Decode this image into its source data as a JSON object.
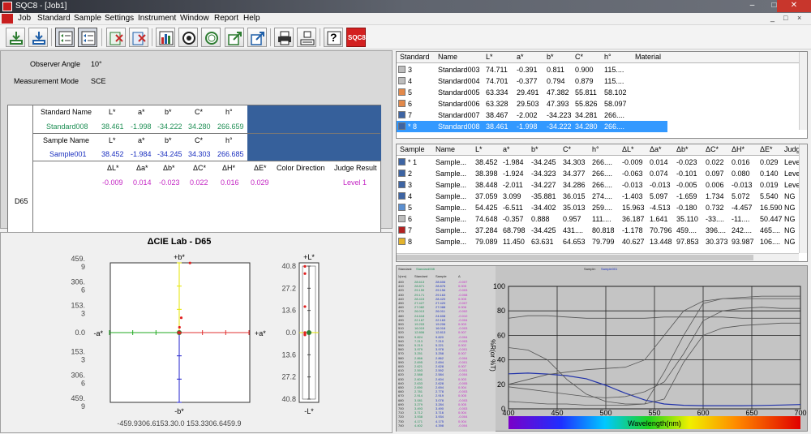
{
  "window": {
    "title": "SQC8 - [Job1]",
    "controls": {
      "min": "–",
      "max": "□",
      "close": "✕"
    }
  },
  "menu": {
    "items": [
      "Job",
      "Standard",
      "Sample",
      "Settings",
      "Instrument",
      "Window",
      "Report",
      "Help"
    ],
    "mdi": {
      "min": "_",
      "restore": "□",
      "close": "×"
    }
  },
  "toolbar": {
    "buttons": [
      "import-standard-icon",
      "import-sample-icon",
      "view-list-icon",
      "view-details-icon",
      "delete-standard-icon",
      "delete-sample-icon",
      "bar-chart-icon",
      "measure-target-icon",
      "measure-circle-icon",
      "export-green-icon",
      "export-blue-icon",
      "print-icon",
      "print-preview-icon",
      "help-icon",
      "sqc8-logo"
    ],
    "logo_text": "SQC8",
    "help_text": "?"
  },
  "info": {
    "observer_angle_label": "Observer Angle",
    "observer_angle_value": "10°",
    "measurement_mode_label": "Measurement Mode",
    "measurement_mode_value": "SCE",
    "illuminant": "D65",
    "standard_header": [
      "Standard Name",
      "L*",
      "a*",
      "b*",
      "C*",
      "h°"
    ],
    "standard_values": [
      "Standard008",
      "38.461",
      "-1.998",
      "-34.222",
      "34.280",
      "266.659"
    ],
    "sample_header": [
      "Sample Name",
      "L*",
      "a*",
      "b*",
      "C*",
      "h°"
    ],
    "sample_values": [
      "Sample001",
      "38.452",
      "-1.984",
      "-34.245",
      "34.303",
      "266.685"
    ],
    "delta_header": [
      "ΔL*",
      "Δa*",
      "Δb*",
      "ΔC*",
      "ΔH*",
      "ΔE*",
      "Color Direction",
      "Judge Result"
    ],
    "delta_values": [
      "-0.009",
      "0.014",
      "-0.023",
      "0.022",
      "0.016",
      "0.029",
      "",
      "Level 1"
    ]
  },
  "lab_chart": {
    "title": "ΔCIE Lab - D65",
    "ab_labels": {
      "top": "+b*",
      "bottom": "-b*",
      "left": "-a*",
      "right": "+a*"
    },
    "b_ticks": [
      "459.\n9",
      "306.\n6",
      "153.\n3",
      "0.0",
      "153.\n3",
      "306.\n6",
      "459.\n9"
    ],
    "a_ticks": "-459.9306.6153.30.0 153.3306.6459.9",
    "l_labels": {
      "top": "+L*",
      "bottom": "-L*"
    },
    "l_ticks": [
      "40.8",
      "27.2",
      "13.6",
      "0.0",
      "13.6",
      "27.2",
      "40.8"
    ]
  },
  "standard_list": {
    "columns": [
      "Standard",
      "Name",
      "L*",
      "a*",
      "b*",
      "C*",
      "h°",
      "Material"
    ],
    "rows": [
      {
        "num": "3",
        "name": "Standard003",
        "L": "74.711",
        "a": "-0.391",
        "b": "0.811",
        "C": "0.900",
        "h": "115....",
        "color": "#bdbdbd"
      },
      {
        "num": "4",
        "name": "Standard004",
        "L": "74.701",
        "a": "-0.377",
        "b": "0.794",
        "C": "0.879",
        "h": "115....",
        "color": "#bdbdbd"
      },
      {
        "num": "5",
        "name": "Standard005",
        "L": "63.334",
        "a": "29.491",
        "b": "47.382",
        "C": "55.811",
        "h": "58.102",
        "color": "#e3894a"
      },
      {
        "num": "6",
        "name": "Standard006",
        "L": "63.328",
        "a": "29.503",
        "b": "47.393",
        "C": "55.826",
        "h": "58.097",
        "color": "#e3894a"
      },
      {
        "num": "7",
        "name": "Standard007",
        "L": "38.467",
        "a": "-2.002",
        "b": "-34.223",
        "C": "34.281",
        "h": "266....",
        "color": "#3d64a3"
      },
      {
        "num": "* 8",
        "name": "Standard008",
        "L": "38.461",
        "a": "-1.998",
        "b": "-34.222",
        "C": "34.280",
        "h": "266....",
        "color": "#3d64a3",
        "selected": true
      }
    ]
  },
  "sample_list": {
    "columns": [
      "Sample",
      "Name",
      "L*",
      "a*",
      "b*",
      "C*",
      "h°",
      "ΔL*",
      "Δa*",
      "Δb*",
      "ΔC*",
      "ΔH*",
      "ΔE*",
      "Judg"
    ],
    "rows": [
      {
        "num": "* 1",
        "name": "Sample...",
        "L": "38.452",
        "a": "-1.984",
        "b": "-34.245",
        "C": "34.303",
        "h": "266....",
        "dL": "-0.009",
        "da": "0.014",
        "db": "-0.023",
        "dC": "0.022",
        "dH": "0.016",
        "dE": "0.029",
        "j": "Leve",
        "color": "#3d64a3"
      },
      {
        "num": "2",
        "name": "Sample...",
        "L": "38.398",
        "a": "-1.924",
        "b": "-34.323",
        "C": "34.377",
        "h": "266....",
        "dL": "-0.063",
        "da": "0.074",
        "db": "-0.101",
        "dC": "0.097",
        "dH": "0.080",
        "dE": "0.140",
        "j": "Leve",
        "color": "#3d64a3"
      },
      {
        "num": "3",
        "name": "Sample...",
        "L": "38.448",
        "a": "-2.011",
        "b": "-34.227",
        "C": "34.286",
        "h": "266....",
        "dL": "-0.013",
        "da": "-0.013",
        "db": "-0.005",
        "dC": "0.006",
        "dH": "-0.013",
        "dE": "0.019",
        "j": "Leve",
        "color": "#3d64a3"
      },
      {
        "num": "4",
        "name": "Sample...",
        "L": "37.059",
        "a": "3.099",
        "b": "-35.881",
        "C": "36.015",
        "h": "274....",
        "dL": "-1.403",
        "da": "5.097",
        "db": "-1.659",
        "dC": "1.734",
        "dH": "5.072",
        "dE": "5.540",
        "j": "NG",
        "color": "#3d64a3"
      },
      {
        "num": "5",
        "name": "Sample...",
        "L": "54.425",
        "a": "-6.511",
        "b": "-34.402",
        "C": "35.013",
        "h": "259....",
        "dL": "15.963",
        "da": "-4.513",
        "db": "-0.180",
        "dC": "0.732",
        "dH": "-4.457",
        "dE": "16.590",
        "j": "NG",
        "color": "#5b8fd0"
      },
      {
        "num": "6",
        "name": "Sample...",
        "L": "74.648",
        "a": "-0.357",
        "b": "0.888",
        "C": "0.957",
        "h": "111....",
        "dL": "36.187",
        "da": "1.641",
        "db": "35.110",
        "dC": "-33....",
        "dH": "-11....",
        "dE": "50.447",
        "j": "NG",
        "color": "#bdbdbd"
      },
      {
        "num": "7",
        "name": "Sample...",
        "L": "37.284",
        "a": "68.798",
        "b": "-34.425",
        "C": "431....",
        "h": "80.818",
        "dL": "-1.178",
        "da": "70.796",
        "db": "459....",
        "dC": "396....",
        "dH": "242....",
        "dE": "465....",
        "j": "NG",
        "color": "#b22222"
      },
      {
        "num": "8",
        "name": "Sample...",
        "L": "79.089",
        "a": "11.450",
        "b": "63.631",
        "C": "64.653",
        "h": "79.799",
        "dL": "40.627",
        "da": "13.448",
        "db": "97.853",
        "dC": "30.373",
        "dH": "93.987",
        "dE": "106....",
        "j": "NG",
        "color": "#e3b32c"
      }
    ]
  },
  "spectrum": {
    "standard_label": "Standard:",
    "standard_name": "Standard008",
    "sample_label": "Sample:",
    "sample_name": "Sample001",
    "y_axis_label": "%R(or %T)",
    "x_axis_label": "Wavelength(nm)",
    "y_ticks": [
      "100",
      "80",
      "60",
      "40",
      "20",
      "0"
    ],
    "x_ticks": [
      "400",
      "450",
      "500",
      "550",
      "600",
      "650",
      "700"
    ],
    "table_header": [
      "λ(nm)",
      "Standard",
      "Sample",
      "Δ"
    ],
    "table_rows": [
      [
        "400",
        "28.613",
        "28.606",
        "-0.007"
      ],
      [
        "410",
        "28.871",
        "28.876",
        "0.005"
      ],
      [
        "420",
        "29.159",
        "29.156",
        "-0.003"
      ],
      [
        "430",
        "29.171",
        "29.163",
        "-0.008"
      ],
      [
        "440",
        "28.415",
        "28.420",
        "0.005"
      ],
      [
        "450",
        "27.427",
        "27.420",
        "-0.007"
      ],
      [
        "460",
        "27.082",
        "27.088",
        "0.006"
      ],
      [
        "470",
        "26.013",
        "26.011",
        "-0.002"
      ],
      [
        "480",
        "24.618",
        "24.608",
        "-0.010"
      ],
      [
        "490",
        "22.167",
        "22.163",
        "-0.004"
      ],
      [
        "500",
        "19.203",
        "19.206",
        "0.003"
      ],
      [
        "510",
        "16.019",
        "16.016",
        "-0.003"
      ],
      [
        "520",
        "12.806",
        "12.813",
        "0.007"
      ],
      [
        "530",
        "9.824",
        "9.820",
        "-0.004"
      ],
      [
        "540",
        "7.213",
        "7.210",
        "-0.003"
      ],
      [
        "550",
        "5.219",
        "5.221",
        "0.002"
      ],
      [
        "560",
        "3.979",
        "3.978",
        "-0.001"
      ],
      [
        "570",
        "3.251",
        "3.258",
        "0.007"
      ],
      [
        "580",
        "2.866",
        "2.862",
        "-0.004"
      ],
      [
        "590",
        "2.695",
        "2.694",
        "-0.001"
      ],
      [
        "600",
        "2.621",
        "2.628",
        "0.007"
      ],
      [
        "610",
        "2.593",
        "2.592",
        "-0.001"
      ],
      [
        "620",
        "2.588",
        "2.584",
        "-0.004"
      ],
      [
        "630",
        "2.601",
        "2.604",
        "0.003"
      ],
      [
        "640",
        "2.633",
        "2.628",
        "-0.005"
      ],
      [
        "650",
        "2.690",
        "2.694",
        "0.004"
      ],
      [
        "660",
        "2.781",
        "2.778",
        "-0.003"
      ],
      [
        "670",
        "2.914",
        "2.919",
        "0.005"
      ],
      [
        "680",
        "3.081",
        "3.078",
        "-0.003"
      ],
      [
        "690",
        "3.279",
        "3.284",
        "0.005"
      ],
      [
        "700",
        "3.493",
        "3.490",
        "-0.003"
      ],
      [
        "710",
        "3.712",
        "3.716",
        "0.004"
      ],
      [
        "720",
        "3.938",
        "3.934",
        "-0.004"
      ],
      [
        "730",
        "4.171",
        "4.175",
        "0.004"
      ],
      [
        "740",
        "4.402",
        "4.398",
        "-0.004"
      ]
    ]
  },
  "chart_data": [
    {
      "type": "scatter",
      "title": "ΔCIE Lab - D65",
      "xlabel": "+a*",
      "ylabel": "+b*",
      "xlim": [
        -459.9,
        459.9
      ],
      "ylim": [
        -459.9,
        459.9
      ],
      "series": [
        {
          "points": [
            [
              0.014,
              -0.023
            ],
            [
              0.074,
              -0.101
            ],
            [
              -0.013,
              -0.005
            ],
            [
              5.097,
              -1.659
            ],
            [
              -4.513,
              -0.18
            ],
            [
              1.641,
              35.11
            ],
            [
              70.796,
              459.0
            ],
            [
              13.448,
              97.853
            ]
          ]
        }
      ],
      "colors": {
        "points": "#e02020",
        "standard": "#2e7d32",
        "plus_b": "#e6e600",
        "minus_b": "#2222cc",
        "plus_a": "#e03030",
        "minus_a": "#22aa22"
      }
    },
    {
      "type": "scatter",
      "title": "",
      "ylabel": "+L*",
      "ylim": [
        -40.8,
        40.8
      ],
      "series": [
        {
          "values": [
            -0.009,
            -0.063,
            -0.013,
            -1.403,
            15.963,
            36.187,
            -1.178,
            40.627
          ]
        }
      ]
    },
    {
      "type": "line",
      "xlabel": "Wavelength(nm)",
      "ylabel": "%R(or %T)",
      "xlim": [
        400,
        700
      ],
      "ylim": [
        0,
        100
      ],
      "series": [
        {
          "values_x": [
            400,
            420,
            440,
            460,
            480,
            500,
            520,
            540,
            560,
            580,
            600,
            620,
            640,
            660,
            680,
            700
          ],
          "values": [
            28.6,
            29.2,
            28.4,
            27.1,
            24.6,
            19.2,
            12.8,
            7.2,
            4.0,
            2.9,
            2.6,
            2.6,
            2.6,
            2.8,
            3.1,
            3.5
          ]
        },
        {
          "values_x": [
            400,
            420,
            440,
            460,
            480,
            500,
            520,
            540,
            560,
            580,
            600,
            620,
            640,
            660,
            680,
            700
          ],
          "values": [
            74,
            76,
            76,
            75,
            74,
            74,
            74,
            74,
            75,
            75,
            75,
            75,
            74,
            74,
            74,
            74
          ]
        },
        {
          "values_x": [
            400,
            420,
            440,
            460,
            480,
            500,
            520,
            540,
            560,
            580,
            600,
            620,
            640,
            660,
            680,
            700
          ],
          "values": [
            18,
            16,
            14,
            12,
            10,
            9,
            10,
            14,
            22,
            45,
            72,
            80,
            82,
            83,
            82,
            82
          ]
        },
        {
          "values_x": [
            400,
            420,
            440,
            460,
            480,
            500,
            520,
            540,
            560,
            580,
            600,
            620,
            640,
            660,
            680,
            700
          ],
          "values": [
            6,
            5,
            4,
            4,
            3,
            3,
            3,
            4,
            8,
            38,
            60,
            66,
            68,
            69,
            70,
            70
          ]
        },
        {
          "values_x": [
            400,
            420,
            440,
            460,
            480,
            500,
            520,
            540,
            560,
            580,
            600,
            620,
            640,
            660,
            680,
            700
          ],
          "values": [
            50,
            48,
            40,
            24,
            12,
            6,
            4,
            4,
            30,
            60,
            86,
            90,
            91,
            92,
            92,
            92
          ]
        },
        {
          "values_x": [
            400,
            420,
            440,
            460,
            480,
            500,
            520,
            540,
            560,
            580,
            600,
            620,
            640,
            660,
            680,
            700
          ],
          "values": [
            20,
            24,
            28,
            30,
            32,
            33,
            34,
            40,
            60,
            80,
            88,
            90,
            90,
            90,
            90,
            90
          ]
        }
      ],
      "spectrum_bar": true
    }
  ]
}
